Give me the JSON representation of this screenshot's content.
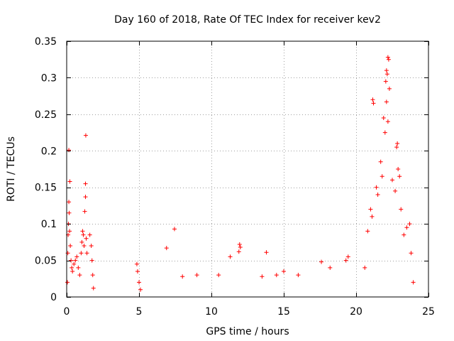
{
  "chart_data": {
    "type": "scatter",
    "title": "Day 160 of 2018, Rate Of TEC Index for receiver kev2",
    "xlabel": "GPS time / hours",
    "ylabel": "ROTI / TECUs",
    "xlim": [
      0,
      25
    ],
    "ylim": [
      0,
      0.35
    ],
    "xticks": [
      0,
      5,
      10,
      15,
      20,
      25
    ],
    "yticks": [
      0,
      0.05,
      0.1,
      0.15,
      0.2,
      0.25,
      0.3,
      0.35
    ],
    "xtick_labels": [
      "0",
      "5",
      "10",
      "15",
      "20",
      "25"
    ],
    "ytick_labels": [
      "0",
      "0.05",
      "0.1",
      "0.15",
      "0.2",
      "0.25",
      "0.3",
      "0.35"
    ],
    "grid": true,
    "marker": "+",
    "color": "#ff0000",
    "series": [
      {
        "points": [
          [
            0.05,
            0.02
          ],
          [
            0.08,
            0.06
          ],
          [
            0.1,
            0.085
          ],
          [
            0.12,
            0.1
          ],
          [
            0.15,
            0.13
          ],
          [
            0.17,
            0.115
          ],
          [
            0.2,
            0.09
          ],
          [
            0.22,
            0.158
          ],
          [
            0.15,
            0.201
          ],
          [
            0.25,
            0.07
          ],
          [
            0.3,
            0.05
          ],
          [
            0.35,
            0.04
          ],
          [
            0.4,
            0.035
          ],
          [
            0.5,
            0.045
          ],
          [
            0.6,
            0.05
          ],
          [
            0.7,
            0.055
          ],
          [
            0.8,
            0.04
          ],
          [
            0.9,
            0.03
          ],
          [
            1.0,
            0.06
          ],
          [
            1.05,
            0.075
          ],
          [
            1.1,
            0.09
          ],
          [
            1.15,
            0.085
          ],
          [
            1.2,
            0.07
          ],
          [
            1.25,
            0.117
          ],
          [
            1.3,
            0.137
          ],
          [
            1.3,
            0.155
          ],
          [
            1.32,
            0.221
          ],
          [
            1.35,
            0.08
          ],
          [
            1.4,
            0.06
          ],
          [
            1.6,
            0.085
          ],
          [
            1.7,
            0.07
          ],
          [
            1.75,
            0.05
          ],
          [
            1.8,
            0.03
          ],
          [
            1.85,
            0.012
          ],
          [
            4.85,
            0.045
          ],
          [
            4.9,
            0.035
          ],
          [
            5.0,
            0.02
          ],
          [
            5.1,
            0.01
          ],
          [
            6.9,
            0.067
          ],
          [
            7.45,
            0.093
          ],
          [
            8.0,
            0.028
          ],
          [
            9.0,
            0.03
          ],
          [
            10.5,
            0.03
          ],
          [
            11.3,
            0.055
          ],
          [
            11.9,
            0.062
          ],
          [
            11.95,
            0.072
          ],
          [
            12.0,
            0.068
          ],
          [
            13.5,
            0.028
          ],
          [
            13.8,
            0.061
          ],
          [
            14.5,
            0.03
          ],
          [
            15.0,
            0.035
          ],
          [
            16.0,
            0.03
          ],
          [
            17.6,
            0.048
          ],
          [
            18.2,
            0.04
          ],
          [
            19.3,
            0.05
          ],
          [
            19.45,
            0.055
          ],
          [
            20.6,
            0.04
          ],
          [
            20.8,
            0.09
          ],
          [
            21.0,
            0.12
          ],
          [
            21.1,
            0.11
          ],
          [
            21.15,
            0.27
          ],
          [
            21.2,
            0.265
          ],
          [
            21.4,
            0.15
          ],
          [
            21.5,
            0.14
          ],
          [
            21.7,
            0.185
          ],
          [
            21.8,
            0.165
          ],
          [
            21.9,
            0.245
          ],
          [
            22.0,
            0.225
          ],
          [
            22.05,
            0.295
          ],
          [
            22.1,
            0.31
          ],
          [
            22.15,
            0.305
          ],
          [
            22.2,
            0.328
          ],
          [
            22.25,
            0.325
          ],
          [
            22.3,
            0.285
          ],
          [
            22.1,
            0.267
          ],
          [
            22.2,
            0.24
          ],
          [
            22.5,
            0.16
          ],
          [
            22.7,
            0.145
          ],
          [
            22.8,
            0.205
          ],
          [
            22.85,
            0.21
          ],
          [
            22.9,
            0.175
          ],
          [
            23.0,
            0.165
          ],
          [
            23.1,
            0.12
          ],
          [
            23.3,
            0.085
          ],
          [
            23.5,
            0.095
          ],
          [
            23.7,
            0.1
          ],
          [
            23.8,
            0.06
          ],
          [
            23.95,
            0.02
          ]
        ]
      }
    ]
  }
}
